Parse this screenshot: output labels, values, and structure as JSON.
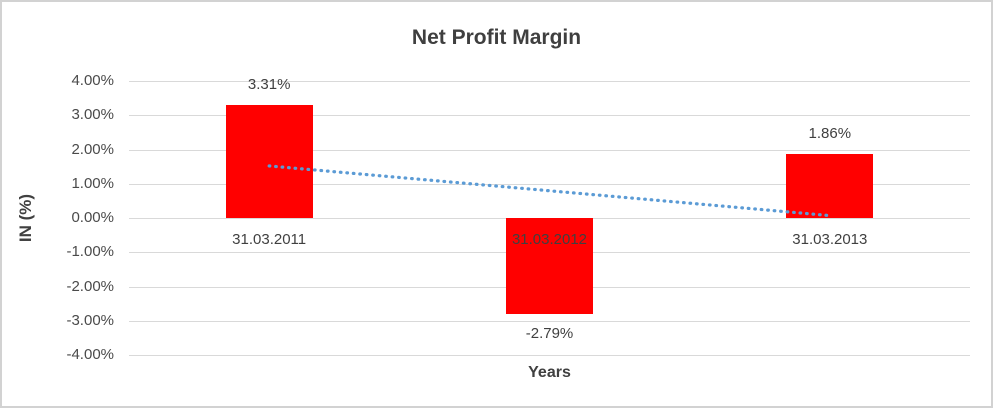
{
  "chart_data": {
    "type": "bar",
    "title": "Net Profit Margin",
    "xlabel": "Years",
    "ylabel": "IN (%)",
    "categories": [
      "31.03.2011",
      "31.03.2012",
      "31.03.2013"
    ],
    "values": [
      3.31,
      -2.79,
      1.86
    ],
    "value_labels": [
      "3.31%",
      "-2.79%",
      "1.86%"
    ],
    "ylim": [
      -4,
      4
    ],
    "ytick_step": 1,
    "ytick_labels": [
      "4.00%",
      "3.00%",
      "2.00%",
      "1.00%",
      "0.00%",
      "-1.00%",
      "-2.00%",
      "-3.00%",
      "-4.00%"
    ],
    "grid": true,
    "legend": "none",
    "bar_color": "#ff0000",
    "gridline_color": "#d9d9d9",
    "text_color": "#404040",
    "trendline": {
      "type": "linear",
      "style": "dotted",
      "color": "#5b9bd5",
      "start_value": 1.52,
      "end_value": 0.07
    }
  }
}
